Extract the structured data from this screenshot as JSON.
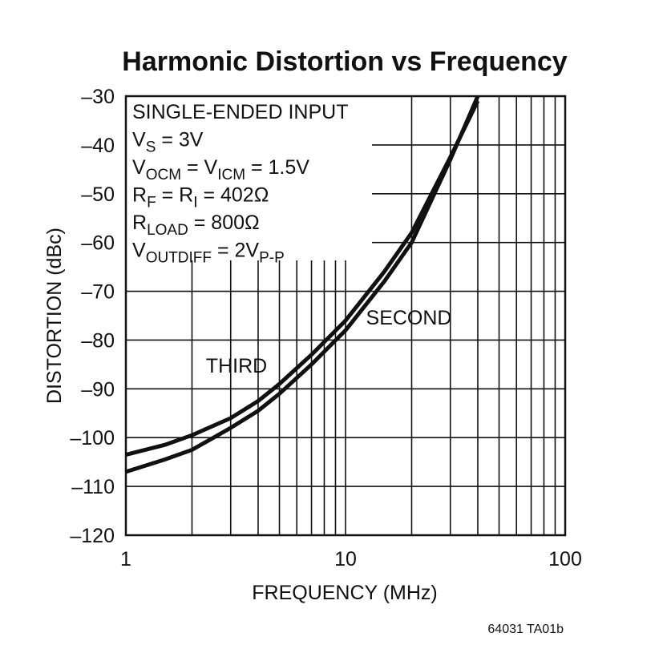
{
  "chart_data": {
    "type": "line",
    "title": "Harmonic Distortion vs Frequency",
    "x_label": "FREQUENCY (MHz)",
    "y_label": "DISTORTION (dBc)",
    "x_log": true,
    "grid": true,
    "xlim": [
      1,
      100
    ],
    "ylim": [
      -120,
      -30
    ],
    "xticks": [
      1,
      10,
      100
    ],
    "x_minor_ticks": [
      2,
      3,
      4,
      5,
      6,
      7,
      8,
      9,
      20,
      30,
      40,
      50,
      60,
      70,
      80,
      90
    ],
    "yticks": [
      {
        "value": -30,
        "label": "–30"
      },
      {
        "value": -40,
        "label": "–40"
      },
      {
        "value": -50,
        "label": "–50"
      },
      {
        "value": -60,
        "label": "–60"
      },
      {
        "value": -70,
        "label": "–70"
      },
      {
        "value": -80,
        "label": "–80"
      },
      {
        "value": -90,
        "label": "–90"
      },
      {
        "value": -100,
        "label": "–100"
      },
      {
        "value": -110,
        "label": "–110"
      },
      {
        "value": -120,
        "label": "–120"
      }
    ],
    "series": [
      {
        "name": "THIRD",
        "color": "#111111",
        "x": [
          1,
          1.5,
          2,
          3,
          4,
          5,
          7,
          10,
          15,
          20,
          30,
          40
        ],
        "values": [
          -103.5,
          -101.5,
          -99.5,
          -96,
          -92.5,
          -89,
          -83,
          -76,
          -66,
          -58,
          -42.5,
          -31
        ]
      },
      {
        "name": "SECOND",
        "color": "#111111",
        "x": [
          1,
          1.5,
          2,
          3,
          4,
          5,
          7,
          10,
          15,
          20,
          30,
          40
        ],
        "values": [
          -107,
          -104.5,
          -102.5,
          -98,
          -94.5,
          -91,
          -85,
          -78,
          -68,
          -60,
          -43,
          -30
        ]
      }
    ],
    "series_label_positions": "THIRD upper-left, SECOND lower-right",
    "annotation": [
      [
        {
          "text": "SINGLE-ENDED INPUT"
        }
      ],
      [
        {
          "text": "V"
        },
        {
          "sub": "S"
        },
        {
          "text": " = 3V"
        }
      ],
      [
        {
          "text": "V"
        },
        {
          "sub": "OCM"
        },
        {
          "text": " = V"
        },
        {
          "sub": "ICM"
        },
        {
          "text": " = 1.5V"
        }
      ],
      [
        {
          "text": "R"
        },
        {
          "sub": "F"
        },
        {
          "text": " = R"
        },
        {
          "sub": "I"
        },
        {
          "text": " = 402Ω"
        }
      ],
      [
        {
          "text": "R"
        },
        {
          "sub": "LOAD"
        },
        {
          "text": " = 800Ω"
        }
      ],
      [
        {
          "text": "V"
        },
        {
          "sub": "OUTDIFF"
        },
        {
          "text": " = 2V"
        },
        {
          "sub": "P-P"
        }
      ]
    ],
    "footnote": "64031 TA01b"
  }
}
